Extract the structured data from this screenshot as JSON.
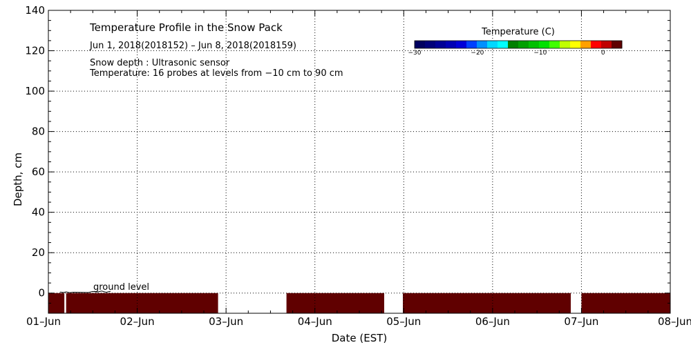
{
  "chart_data": {
    "type": "heatmap",
    "title": "Temperature Profile in the Snow Pack",
    "subtitle": "Jun  1, 2018(2018152) – Jun  8, 2018(2018159)",
    "annotations": [
      "Snow depth : Ultrasonic sensor",
      "Temperature: 16 probes at levels from −10 cm to 90 cm"
    ],
    "ground_label": "ground level",
    "xlabel": "Date (EST)",
    "ylabel": "Depth, cm",
    "x_ticks": [
      "01–Jun",
      "02–Jun",
      "03–Jun",
      "04–Jun",
      "05–Jun",
      "06–Jun",
      "07–Jun",
      "08–Jun"
    ],
    "xlim": [
      "2018-06-01",
      "2018-06-08"
    ],
    "ylim": [
      -10,
      140
    ],
    "y_ticks": [
      0,
      20,
      40,
      60,
      80,
      100,
      120,
      140
    ],
    "grid": true,
    "colorbar": {
      "label": "Temperature (C)",
      "range": [
        -30,
        3
      ],
      "ticks": [
        {
          "value": -30,
          "label": "−30"
        },
        {
          "value": -20,
          "label": "−20"
        },
        {
          "value": -10,
          "label": "−10"
        },
        {
          "value": 0,
          "label": "0"
        }
      ],
      "colors": [
        "#000060",
        "#00007a",
        "#000096",
        "#0000b4",
        "#0000d8",
        "#0040ff",
        "#0090ff",
        "#00d8ff",
        "#00ffff",
        "#008000",
        "#00a000",
        "#00c000",
        "#00e000",
        "#40ff00",
        "#c0ff00",
        "#ffff00",
        "#ffa000",
        "#ff0000",
        "#c00000",
        "#600000"
      ]
    },
    "temperature_bands": {
      "depth_range": [
        -10,
        0
      ],
      "color": "#600000",
      "segments": [
        {
          "start": "2018-06-01T00:00",
          "end": "2018-06-01T04:20"
        },
        {
          "start": "2018-06-01T04:40",
          "end": "2018-06-02T21:50"
        },
        {
          "start": "2018-06-03T17:30",
          "end": "2018-06-04T23:45"
        },
        {
          "start": "2018-06-05T00:00",
          "end": "2018-06-05T00:05"
        },
        {
          "start": "2018-06-05T00:00",
          "end": "2018-06-05T00:00"
        },
        {
          "start": "2018-06-05T00:00",
          "end": "2018-06-05T00:00"
        }
      ],
      "segments_fixed": [
        {
          "start": 0.0,
          "end": 0.18
        },
        {
          "start": 0.2,
          "end": 1.91
        },
        {
          "start": 2.68,
          "end": 3.78
        },
        {
          "start": 3.99,
          "end": 5.88
        },
        {
          "start": 6.0,
          "end": 7.0
        }
      ]
    },
    "snow_depth_trace": [
      {
        "x": 0.13,
        "y": 0.5
      },
      {
        "x": 0.17,
        "y": 0.3
      },
      {
        "x": 0.2,
        "y": 0.6
      },
      {
        "x": 0.24,
        "y": 0.2
      },
      {
        "x": 0.28,
        "y": 0.4
      },
      {
        "x": 0.45,
        "y": 0.3
      },
      {
        "x": 0.5,
        "y": 0.8
      },
      {
        "x": 0.55,
        "y": 0.5
      },
      {
        "x": 0.6,
        "y": 1.0
      },
      {
        "x": 0.65,
        "y": 0.4
      },
      {
        "x": 0.7,
        "y": 0.9
      }
    ]
  }
}
